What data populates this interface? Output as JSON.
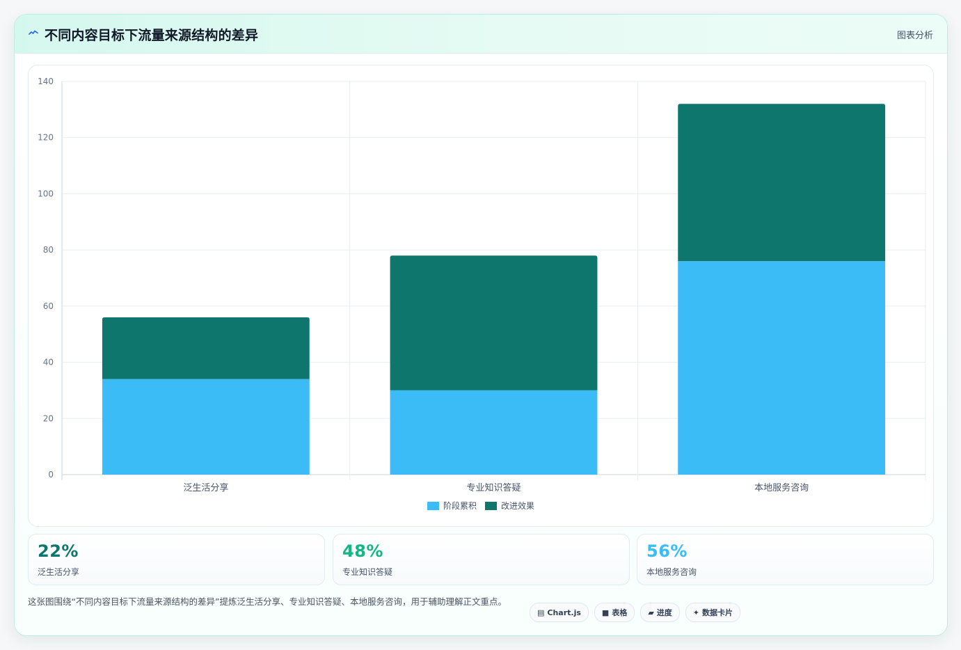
{
  "header": {
    "title": "不同内容目标下流量来源结构的差异",
    "tag": "图表分析",
    "icon": "wave-icon"
  },
  "chart_data": {
    "type": "bar",
    "stacked": true,
    "categories": [
      "泛生活分享",
      "专业知识答疑",
      "本地服务咨询"
    ],
    "series": [
      {
        "name": "阶段累积",
        "values": [
          34,
          30,
          76
        ],
        "color": "#3bbcf6"
      },
      {
        "name": "改进效果",
        "values": [
          22,
          48,
          56
        ],
        "color": "#0f766e"
      }
    ],
    "ylim": [
      0,
      140
    ],
    "yticks": [
      0,
      20,
      40,
      60,
      80,
      100,
      120,
      140
    ],
    "grid": true,
    "legend": "bottom"
  },
  "stats": [
    {
      "value": "22%",
      "label": "泛生活分享",
      "color": "#0f766e"
    },
    {
      "value": "48%",
      "label": "专业知识答疑",
      "color": "#10b981"
    },
    {
      "value": "56%",
      "label": "本地服务咨询",
      "color": "#38bdf8"
    }
  ],
  "description": "这张图围绕“不同内容目标下流量来源结构的差异”提炼泛生活分享、专业知识答疑、本地服务咨询，用于辅助理解正文重点。",
  "chips": [
    {
      "icon": "▤",
      "icon_name": "chartjs-icon",
      "label": "Chart.js"
    },
    {
      "icon": "■",
      "icon_name": "table-icon",
      "label": "表格"
    },
    {
      "icon": "▰",
      "icon_name": "progress-icon",
      "label": "进度"
    },
    {
      "icon": "✦",
      "icon_name": "data-card-icon",
      "label": "数据卡片"
    }
  ]
}
